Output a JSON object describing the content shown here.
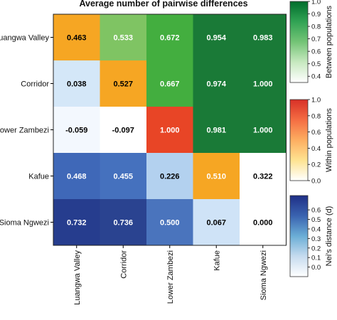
{
  "chart_data": {
    "type": "heatmap",
    "title": "Average number of pairwise differences",
    "rows": [
      "Luangwa Valley",
      "Corridor",
      "Lower Zambezi",
      "Kafue",
      "Sioma Ngwezi"
    ],
    "columns": [
      "Luangwa Valley",
      "Corridor",
      "Lower Zambezi",
      "Kafue",
      "Sioma Ngwezi"
    ],
    "values": [
      [
        "0.463",
        "0.533",
        "0.672",
        "0.954",
        "0.983"
      ],
      [
        "0.038",
        "0.527",
        "0.667",
        "0.974",
        "1.000"
      ],
      [
        "-0.059",
        "-0.097",
        "1.000",
        "0.981",
        "1.000"
      ],
      [
        "0.468",
        "0.455",
        "0.226",
        "0.510",
        "0.322"
      ],
      [
        "0.732",
        "0.736",
        "0.500",
        "0.067",
        "0.000"
      ]
    ],
    "cell_colors": [
      [
        "#f6a623",
        "#7fc463",
        "#43ae3f",
        "#1a7a37",
        "#1a7a37"
      ],
      [
        "#d4e7f8",
        "#f6a623",
        "#43ae3f",
        "#1a7a37",
        "#1a7a37"
      ],
      [
        "#f3f8fe",
        "#ffffff",
        "#e84526",
        "#1a7a37",
        "#1a7a37"
      ],
      [
        "#3f68b8",
        "#4571be",
        "#b3d1ef",
        "#f6a623",
        "#ffffff"
      ],
      [
        "#263d8e",
        "#2a4390",
        "#4a74bd",
        "#cfe3f7",
        "#ffffff"
      ]
    ],
    "label_colors": [
      [
        "#000000",
        "#ffffff",
        "#ffffff",
        "#ffffff",
        "#ffffff"
      ],
      [
        "#000000",
        "#000000",
        "#ffffff",
        "#ffffff",
        "#ffffff"
      ],
      [
        "#000000",
        "#000000",
        "#ffffff",
        "#ffffff",
        "#ffffff"
      ],
      [
        "#ffffff",
        "#ffffff",
        "#000000",
        "#ffffff",
        "#000000"
      ],
      [
        "#ffffff",
        "#ffffff",
        "#ffffff",
        "#000000",
        "#000000"
      ]
    ],
    "colorbars": [
      {
        "label": "Between populations",
        "ticks": [
          "1.0",
          "0.9",
          "0.8",
          "0.7",
          "0.6",
          "0.5",
          "0.4"
        ],
        "range": [
          0.35,
          1.0
        ],
        "colors": [
          "#ffffff",
          "#c7e9c0",
          "#74c476",
          "#31a354",
          "#006d2c"
        ]
      },
      {
        "label": "Within populations",
        "ticks": [
          "1.0",
          "0.8",
          "0.6",
          "0.4",
          "0.2",
          "0.0"
        ],
        "range": [
          0.0,
          1.0
        ],
        "colors": [
          "#ffffff",
          "#fee391",
          "#fdae61",
          "#f46d43",
          "#d73027"
        ]
      },
      {
        "label": "Nei's distance (d)",
        "ticks": [
          "0.6",
          "0.5",
          "0.4",
          "0.3",
          "0.2",
          "0.1",
          "0.0"
        ],
        "range": [
          -0.1,
          0.75
        ],
        "colors": [
          "#ffffff",
          "#c6dbef",
          "#6baed6",
          "#3a63b0",
          "#1f2f86"
        ]
      }
    ]
  }
}
